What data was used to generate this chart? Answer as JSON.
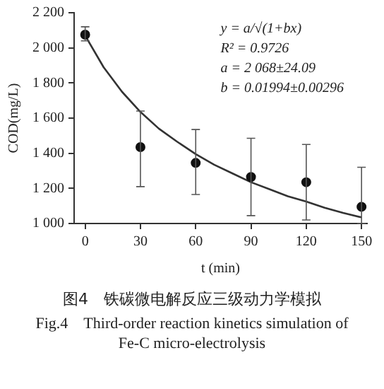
{
  "chart_data": {
    "type": "scatter",
    "title": "图4　铁碳微电解反应三级动力学模拟",
    "subtitle": "Fig.4　Third-order reaction kinetics simulation of Fe-C micro-electrolysis",
    "xlabel": "t (min)",
    "ylabel": "COD(mg/L)",
    "annotations": [
      "y = a/√(1+bx)",
      "R² = 0.9726",
      "a = 2 068±24.09",
      "b = 0.01994±0.00296"
    ],
    "series": [
      {
        "color": "#111111",
        "marker": "circle",
        "x": [
          0,
          30,
          60,
          90,
          120,
          150
        ],
        "values": [
          2075,
          1435,
          1345,
          1265,
          1235,
          1095
        ],
        "errors": [
          [
            2040,
            2120
          ],
          [
            1210,
            1640
          ],
          [
            1165,
            1535
          ],
          [
            1045,
            1485
          ],
          [
            1020,
            1450
          ],
          [
            1000,
            1320
          ]
        ]
      },
      {
        "type": "line",
        "color": "#333333",
        "marker": "none",
        "line_style": "solid",
        "x": [
          0,
          10,
          20,
          30,
          40,
          50,
          60,
          70,
          80,
          90,
          100,
          110,
          120,
          130,
          140,
          150
        ],
        "values": [
          2070,
          1890,
          1750,
          1635,
          1540,
          1465,
          1395,
          1335,
          1285,
          1235,
          1195,
          1155,
          1125,
          1090,
          1060,
          1035
        ]
      }
    ],
    "xlim": [
      -6,
      153
    ],
    "xticks": [
      0,
      30,
      60,
      90,
      120,
      150
    ],
    "ylim": [
      1000,
      2200
    ],
    "yticks": [
      {
        "value": 1000,
        "label": "1 000"
      },
      {
        "value": 1200,
        "label": "1 200"
      },
      {
        "value": 1400,
        "label": "1 400"
      },
      {
        "value": 1600,
        "label": "1 600"
      },
      {
        "value": 1800,
        "label": "1 800"
      },
      {
        "value": 2000,
        "label": "2 000"
      },
      {
        "value": 2200,
        "label": "2 200"
      }
    ],
    "grid": false,
    "legend": false
  }
}
